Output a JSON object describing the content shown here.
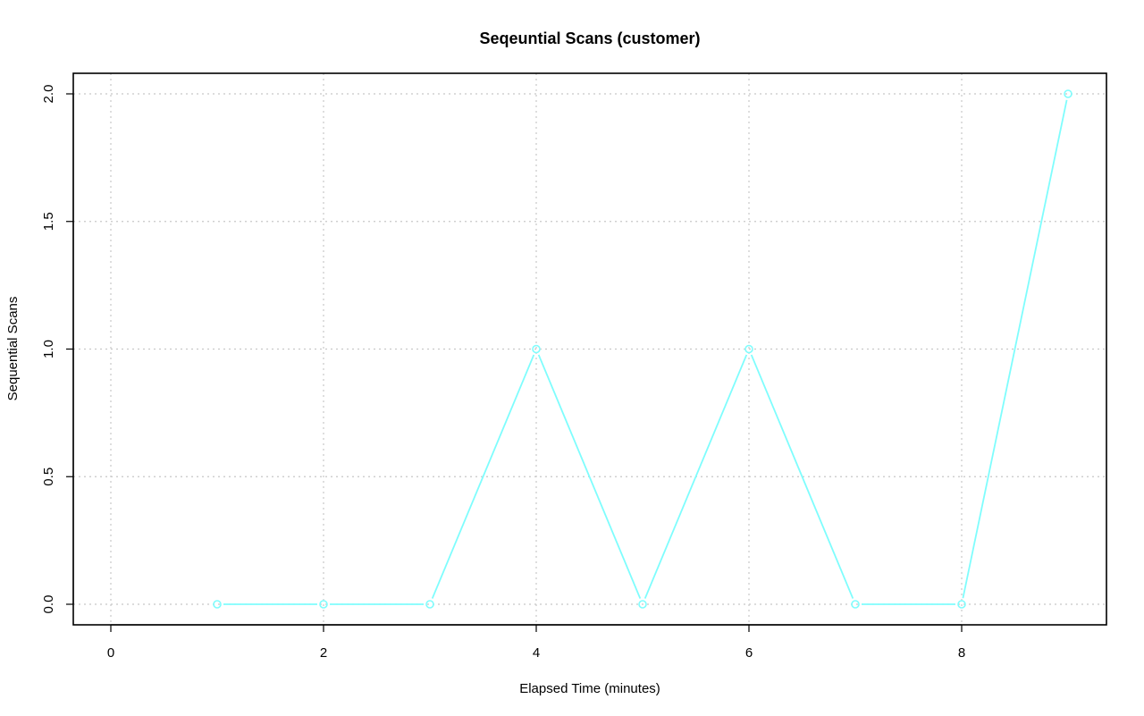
{
  "chart_data": {
    "type": "line",
    "title": "Seqeuntial Scans (customer)",
    "xlabel": "Elapsed Time (minutes)",
    "ylabel": "Sequential Scans",
    "xlim": [
      0,
      9
    ],
    "ylim": [
      0,
      2
    ],
    "x_ticks": [
      "0",
      "2",
      "4",
      "6",
      "8"
    ],
    "y_ticks": [
      "0.0",
      "0.5",
      "1.0",
      "1.5",
      "2.0"
    ],
    "grid": true,
    "series": [
      {
        "x": [
          1,
          2,
          3,
          4,
          5,
          6,
          7,
          8,
          9
        ],
        "values": [
          0,
          0,
          0,
          1,
          0,
          1,
          0,
          0,
          2
        ],
        "color": "#7ffdfd"
      }
    ]
  }
}
